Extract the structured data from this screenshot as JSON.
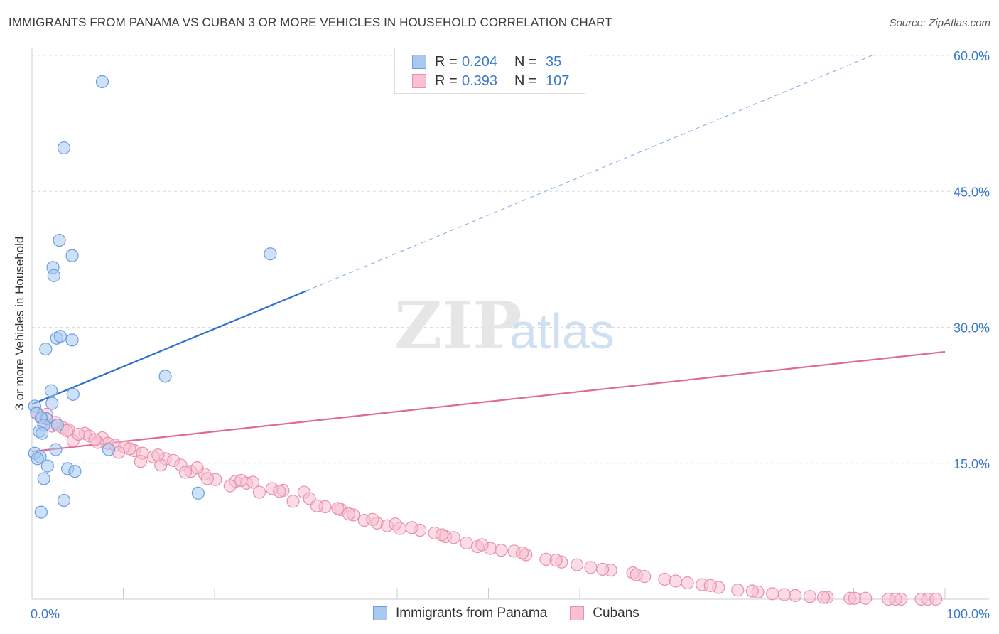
{
  "title": "IMMIGRANTS FROM PANAMA VS CUBAN 3 OR MORE VEHICLES IN HOUSEHOLD CORRELATION CHART",
  "source": "Source: ZipAtlas.com",
  "watermark": {
    "zip": "ZIP",
    "atlas": "atlas"
  },
  "legend": {
    "rows": [
      {
        "r_label": "R =",
        "r_value": "0.204",
        "n_label": "N =",
        "n_value": "35",
        "color": "#a8c8f0",
        "border": "#6a9ee0"
      },
      {
        "r_label": "R =",
        "r_value": "0.393",
        "n_label": "N =",
        "n_value": "107",
        "color": "#f8c0d0",
        "border": "#e890ac"
      }
    ]
  },
  "bottom_legend": {
    "panama": "Immigrants from Panama",
    "cubans": "Cubans"
  },
  "chart_data": {
    "type": "scatter",
    "title": "IMMIGRANTS FROM PANAMA VS CUBAN 3 OR MORE VEHICLES IN HOUSEHOLD CORRELATION CHART",
    "xlabel": "",
    "ylabel": "3 or more Vehicles in Household",
    "xlim": [
      0,
      100
    ],
    "ylim": [
      0,
      60
    ],
    "x_tick_labels": [
      "0.0%",
      "100.0%"
    ],
    "y_ticks": [
      15,
      30,
      45,
      60
    ],
    "y_tick_labels": [
      "15.0%",
      "30.0%",
      "45.0%",
      "60.0%"
    ],
    "grid": true,
    "colors": {
      "panama": "#3a78c9",
      "cubans": "#e06a93",
      "tick_text": "#3a78c9"
    },
    "series": [
      {
        "name": "Immigrants from Panama",
        "points": [
          [
            7.7,
            57.1
          ],
          [
            3.5,
            49.8
          ],
          [
            3.0,
            39.6
          ],
          [
            4.4,
            37.9
          ],
          [
            2.3,
            36.6
          ],
          [
            2.4,
            35.7
          ],
          [
            26.1,
            38.1
          ],
          [
            2.7,
            28.8
          ],
          [
            3.1,
            29.0
          ],
          [
            4.4,
            28.6
          ],
          [
            1.5,
            27.6
          ],
          [
            14.6,
            24.6
          ],
          [
            2.1,
            23.0
          ],
          [
            4.5,
            22.6
          ],
          [
            0.3,
            21.3
          ],
          [
            2.2,
            21.6
          ],
          [
            0.5,
            20.5
          ],
          [
            1.6,
            19.9
          ],
          [
            1.0,
            20.0
          ],
          [
            1.3,
            19.2
          ],
          [
            2.8,
            19.2
          ],
          [
            0.8,
            18.5
          ],
          [
            1.1,
            18.3
          ],
          [
            8.4,
            16.5
          ],
          [
            2.6,
            16.5
          ],
          [
            0.3,
            16.1
          ],
          [
            0.9,
            15.7
          ],
          [
            0.6,
            15.5
          ],
          [
            1.7,
            14.7
          ],
          [
            3.9,
            14.4
          ],
          [
            4.7,
            14.1
          ],
          [
            1.3,
            13.3
          ],
          [
            18.2,
            11.7
          ],
          [
            3.5,
            10.9
          ],
          [
            1.0,
            9.6
          ]
        ]
      },
      {
        "name": "Cubans",
        "points": [
          [
            0.5,
            20.6
          ],
          [
            1.1,
            20.0
          ],
          [
            1.6,
            20.4
          ],
          [
            2.2,
            19.1
          ],
          [
            3.4,
            18.9
          ],
          [
            4.0,
            18.7
          ],
          [
            5.8,
            18.3
          ],
          [
            6.3,
            18.0
          ],
          [
            7.7,
            17.8
          ],
          [
            4.5,
            17.5
          ],
          [
            8.3,
            17.2
          ],
          [
            9.1,
            17.0
          ],
          [
            10.1,
            16.8
          ],
          [
            11.2,
            16.4
          ],
          [
            12.1,
            16.1
          ],
          [
            13.3,
            15.7
          ],
          [
            14.6,
            15.5
          ],
          [
            15.5,
            15.3
          ],
          [
            16.3,
            14.8
          ],
          [
            17.4,
            14.1
          ],
          [
            18.9,
            13.8
          ],
          [
            20.1,
            13.2
          ],
          [
            22.3,
            13.0
          ],
          [
            23.5,
            12.8
          ],
          [
            24.2,
            12.9
          ],
          [
            26.3,
            12.2
          ],
          [
            27.5,
            12.0
          ],
          [
            29.8,
            11.8
          ],
          [
            30.4,
            11.1
          ],
          [
            32.1,
            10.2
          ],
          [
            33.8,
            9.9
          ],
          [
            35.2,
            9.3
          ],
          [
            36.4,
            8.7
          ],
          [
            37.8,
            8.4
          ],
          [
            38.9,
            8.1
          ],
          [
            40.3,
            7.8
          ],
          [
            42.5,
            7.6
          ],
          [
            44.1,
            7.3
          ],
          [
            45.3,
            6.9
          ],
          [
            47.6,
            6.2
          ],
          [
            48.8,
            5.8
          ],
          [
            50.2,
            5.6
          ],
          [
            52.8,
            5.3
          ],
          [
            54.1,
            4.9
          ],
          [
            56.3,
            4.4
          ],
          [
            58.0,
            4.1
          ],
          [
            59.7,
            3.8
          ],
          [
            61.2,
            3.5
          ],
          [
            63.4,
            3.2
          ],
          [
            65.8,
            2.9
          ],
          [
            67.1,
            2.5
          ],
          [
            69.3,
            2.2
          ],
          [
            71.8,
            1.8
          ],
          [
            73.4,
            1.6
          ],
          [
            75.2,
            1.3
          ],
          [
            77.3,
            1.0
          ],
          [
            79.5,
            0.8
          ],
          [
            81.1,
            0.6
          ],
          [
            83.6,
            0.4
          ],
          [
            85.2,
            0.3
          ],
          [
            87.1,
            0.2
          ],
          [
            89.6,
            0.1
          ],
          [
            91.3,
            0.1
          ],
          [
            93.8,
            0.0
          ],
          [
            95.2,
            0.0
          ],
          [
            97.4,
            0.0
          ],
          [
            2.6,
            19.5
          ],
          [
            5.1,
            18.2
          ],
          [
            7.2,
            17.3
          ],
          [
            9.5,
            16.2
          ],
          [
            11.9,
            15.2
          ],
          [
            14.1,
            14.8
          ],
          [
            16.8,
            14.0
          ],
          [
            19.2,
            13.3
          ],
          [
            21.7,
            12.5
          ],
          [
            24.9,
            11.8
          ],
          [
            28.6,
            10.8
          ],
          [
            31.2,
            10.3
          ],
          [
            34.7,
            9.4
          ],
          [
            37.3,
            8.8
          ],
          [
            41.6,
            7.9
          ],
          [
            46.2,
            6.8
          ],
          [
            49.3,
            6.0
          ],
          [
            53.7,
            5.1
          ],
          [
            57.4,
            4.3
          ],
          [
            62.5,
            3.3
          ],
          [
            66.2,
            2.7
          ],
          [
            70.5,
            2.0
          ],
          [
            74.3,
            1.5
          ],
          [
            78.9,
            0.9
          ],
          [
            82.4,
            0.5
          ],
          [
            86.7,
            0.2
          ],
          [
            90.1,
            0.1
          ],
          [
            94.6,
            0.0
          ],
          [
            98.1,
            0.0
          ],
          [
            99.0,
            0.0
          ],
          [
            3.8,
            18.6
          ],
          [
            6.9,
            17.6
          ],
          [
            10.7,
            16.6
          ],
          [
            13.8,
            15.9
          ],
          [
            18.1,
            14.5
          ],
          [
            22.9,
            13.1
          ],
          [
            27.1,
            11.9
          ],
          [
            33.5,
            10.0
          ],
          [
            39.8,
            8.3
          ],
          [
            44.9,
            7.1
          ],
          [
            51.4,
            5.4
          ]
        ]
      }
    ],
    "trendlines": [
      {
        "series": "Immigrants from Panama",
        "x": [
          0,
          30
        ],
        "y": [
          21.5,
          34.0
        ],
        "style": "solid",
        "extension": {
          "x": [
            30,
            100
          ],
          "y": [
            34.0,
            63.0
          ],
          "style": "dashed"
        }
      },
      {
        "series": "Cubans",
        "x": [
          0,
          100
        ],
        "y": [
          16.3,
          27.3
        ],
        "style": "solid"
      }
    ]
  }
}
